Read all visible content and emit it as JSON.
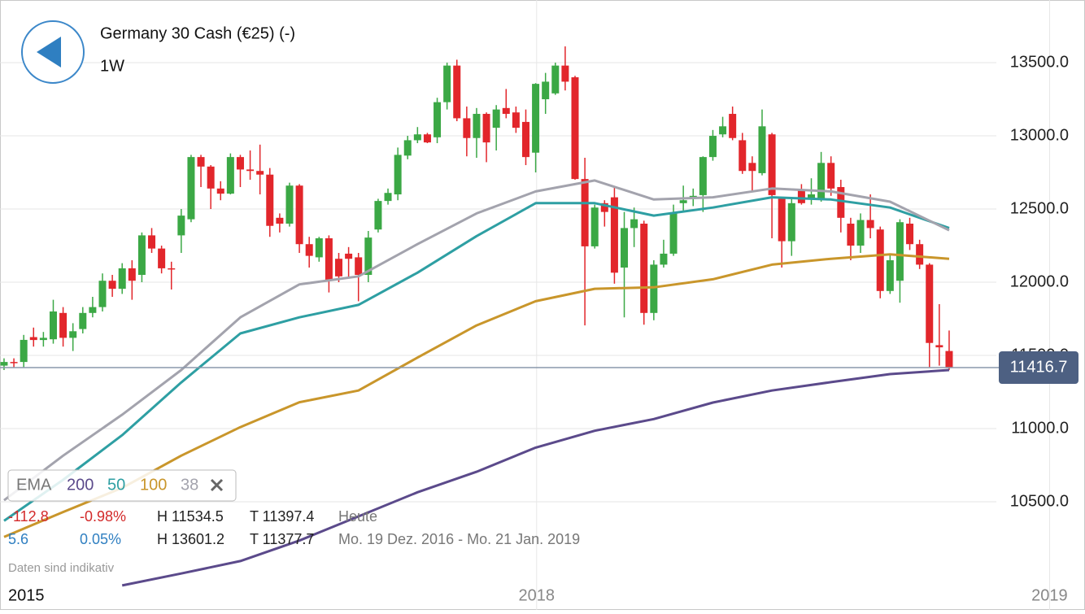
{
  "chart_data": {
    "type": "candlestick",
    "title": "Germany 30 Cash (€25) (-)",
    "subtitle": "1W",
    "categories": [
      null,
      null,
      null,
      null,
      null,
      null,
      null,
      null,
      null,
      null,
      null,
      null,
      null,
      null,
      null,
      null,
      null,
      null,
      null,
      null,
      null,
      null,
      null,
      null,
      null,
      null,
      null,
      null,
      null,
      null,
      null,
      null,
      null,
      null,
      null,
      null,
      null,
      null,
      null,
      null,
      null,
      null,
      null,
      null,
      null,
      null,
      null,
      null,
      null,
      null,
      null,
      null,
      null,
      null,
      null,
      null,
      null,
      null,
      null,
      null,
      null,
      null,
      null,
      null,
      null,
      null,
      null,
      null,
      null,
      null,
      null,
      null,
      null,
      null,
      null,
      null,
      null,
      null,
      null,
      null,
      null,
      null,
      null,
      null,
      null,
      null,
      null,
      null,
      null,
      null,
      null,
      null,
      null,
      null,
      null,
      null,
      null
    ],
    "open": [
      11430,
      11455,
      11455,
      11625,
      11605,
      11610,
      11790,
      11620,
      11680,
      11790,
      11830,
      12010,
      11955,
      12095,
      12050,
      12320,
      12230,
      12095,
      12320,
      12430,
      12855,
      12790,
      12640,
      12605,
      12855,
      12770,
      12760,
      12735,
      12440,
      12400,
      12660,
      12260,
      12170,
      12300,
      12160,
      12195,
      12170,
      12050,
      12360,
      12555,
      12600,
      12865,
      12970,
      13010,
      12990,
      13230,
      13480,
      13120,
      12985,
      13150,
      13055,
      13190,
      13160,
      13095,
      12885,
      13250,
      13290,
      13480,
      13400,
      12705,
      12245,
      12540,
      12580,
      12100,
      12370,
      12400,
      11790,
      12120,
      12195,
      12540,
      12570,
      12595,
      12855,
      13010,
      13150,
      12970,
      12815,
      12745,
      13010,
      12570,
      12280,
      12635,
      12570,
      12570,
      12815,
      12650,
      12400,
      12250,
      12425,
      12360,
      11940,
      12010,
      12400,
      12260,
      12120,
      11570,
      11530
    ],
    "high": [
      11480,
      11480,
      11640,
      11690,
      11660,
      11880,
      11830,
      11720,
      11830,
      11900,
      12060,
      12050,
      12130,
      12150,
      12340,
      12370,
      12250,
      12140,
      12500,
      12870,
      12870,
      12800,
      12690,
      12880,
      12870,
      12900,
      12940,
      12780,
      12470,
      12680,
      12670,
      12310,
      12310,
      12320,
      12200,
      12240,
      12200,
      12350,
      12570,
      12640,
      12920,
      13000,
      13060,
      13020,
      13260,
      13500,
      13520,
      13200,
      13190,
      13160,
      13210,
      13320,
      13200,
      13180,
      13360,
      13430,
      13500,
      13611,
      13410,
      12850,
      12530,
      12560,
      12650,
      12480,
      12510,
      12420,
      12150,
      12290,
      12530,
      12660,
      12640,
      12860,
      13040,
      13130,
      13200,
      13020,
      12860,
      13180,
      13020,
      12580,
      12570,
      12670,
      12710,
      12890,
      12860,
      12700,
      12440,
      12470,
      12600,
      12380,
      12190,
      12430,
      12440,
      12290,
      12130,
      11850,
      11670
    ],
    "low": [
      11400,
      11420,
      11420,
      11560,
      11560,
      11580,
      11560,
      11530,
      11650,
      11760,
      11800,
      11900,
      11920,
      11880,
      12000,
      12200,
      12060,
      11950,
      12200,
      12410,
      12650,
      12500,
      12560,
      12600,
      12650,
      12700,
      12600,
      12310,
      12340,
      12380,
      12200,
      12100,
      12140,
      11930,
      12000,
      12030,
      11870,
      12000,
      12340,
      12530,
      12560,
      12840,
      12950,
      12950,
      12950,
      13180,
      13100,
      12860,
      12850,
      12820,
      12900,
      13120,
      13020,
      12800,
      12750,
      13150,
      13280,
      13310,
      12700,
      11705,
      12230,
      12380,
      11990,
      11760,
      12240,
      11710,
      11740,
      12100,
      12180,
      12490,
      12520,
      12480,
      12830,
      12990,
      12970,
      12740,
      12620,
      12730,
      12300,
      12100,
      12180,
      12530,
      12530,
      12550,
      12590,
      12340,
      12150,
      12200,
      12300,
      11890,
      11920,
      11860,
      12220,
      12090,
      11420,
      11430,
      11400
    ],
    "close": [
      11455,
      11450,
      11606,
      11605,
      11620,
      11800,
      11620,
      11665,
      11790,
      11830,
      12010,
      11955,
      12095,
      12010,
      12320,
      12230,
      12095,
      12090,
      12455,
      12855,
      12790,
      12640,
      12605,
      12855,
      12770,
      12760,
      12735,
      12385,
      12400,
      12660,
      12260,
      12180,
      12300,
      12010,
      12040,
      12160,
      12050,
      12305,
      12555,
      12610,
      12870,
      12970,
      13010,
      12955,
      13230,
      13480,
      13120,
      12985,
      13150,
      12955,
      13180,
      13150,
      13055,
      12855,
      13355,
      13370,
      13480,
      13370,
      12705,
      12245,
      12510,
      12480,
      12065,
      12370,
      12430,
      11790,
      12120,
      12195,
      12470,
      12560,
      12590,
      12855,
      13000,
      13065,
      12985,
      12760,
      12760,
      13065,
      12595,
      12280,
      12540,
      12540,
      12600,
      12815,
      12640,
      12440,
      12250,
      12425,
      12370,
      11940,
      12150,
      12410,
      12260,
      12120,
      11585,
      11555,
      11416.7
    ],
    "up_color": "#3ba845",
    "down_color": "#e2262b",
    "last_price": 11416.7,
    "ema_label": "EMA",
    "ema": [
      {
        "name": "200",
        "color": "#5b4a8b",
        "x": [
          12,
          18,
          24,
          30,
          36,
          42,
          48,
          54,
          60,
          66,
          72,
          78,
          84,
          90,
          96
        ],
        "values": [
          9928,
          10010,
          10095,
          10235,
          10400,
          10565,
          10705,
          10870,
          10985,
          11065,
          11178,
          11260,
          11317,
          11372,
          11400
        ]
      },
      {
        "name": "50",
        "color": "#2e9fa3",
        "x": [
          0,
          6,
          12,
          18,
          24,
          30,
          36,
          42,
          48,
          54,
          60,
          66,
          72,
          78,
          84,
          90,
          96
        ],
        "values": [
          10370,
          10650,
          10955,
          11315,
          11650,
          11760,
          11845,
          12065,
          12315,
          12540,
          12540,
          12455,
          12510,
          12580,
          12565,
          12510,
          12370
        ]
      },
      {
        "name": "100",
        "color": "#c9962b",
        "x": [
          0,
          6,
          12,
          18,
          24,
          30,
          36,
          42,
          48,
          54,
          60,
          66,
          72,
          78,
          84,
          90,
          96
        ],
        "values": [
          10260,
          10430,
          10595,
          10815,
          11010,
          11180,
          11260,
          11485,
          11705,
          11870,
          11955,
          11965,
          12020,
          12120,
          12160,
          12190,
          12160
        ]
      },
      {
        "name": "38",
        "color": "#a3a3ad",
        "x": [
          0,
          6,
          12,
          18,
          24,
          30,
          36,
          42,
          48,
          54,
          60,
          66,
          72,
          78,
          84,
          90,
          96
        ],
        "values": [
          10510,
          10815,
          11095,
          11400,
          11760,
          11985,
          12040,
          12260,
          12470,
          12620,
          12695,
          12565,
          12580,
          12640,
          12620,
          12550,
          12355
        ]
      }
    ],
    "xlim": [
      -0.41,
      109.8
    ],
    "ylim": [
      9761,
      13928
    ],
    "xticks": [
      {
        "value": -0.41,
        "label": "2015"
      },
      {
        "value": 54.1,
        "label": "2018"
      },
      {
        "value": 106.2,
        "label": "2019"
      }
    ],
    "yticks": [
      {
        "value": 10500,
        "label": "10500.0"
      },
      {
        "value": 11000,
        "label": "11000.0"
      },
      {
        "value": 11500,
        "label": "11500.0"
      },
      {
        "value": 12000,
        "label": "12000.0"
      },
      {
        "value": 12500,
        "label": "12500.0"
      },
      {
        "value": 13000,
        "label": "13000.0"
      },
      {
        "value": 13500,
        "label": "13500.0"
      }
    ],
    "grid": true
  },
  "info": {
    "rows": [
      {
        "color": "#d32a2a",
        "cells": [
          "-112.8",
          "-0.98%",
          "H 11534.5",
          "T 11397.4",
          "Heute"
        ]
      },
      {
        "color": "#2f7fc1",
        "cells": [
          "5.6",
          "0.05%",
          "H 13601.2",
          "T 11377.7",
          "Mo. 19 Dez. 2016 - Mo. 21 Jan. 2019"
        ]
      }
    ],
    "note": "Daten sind indikativ"
  }
}
